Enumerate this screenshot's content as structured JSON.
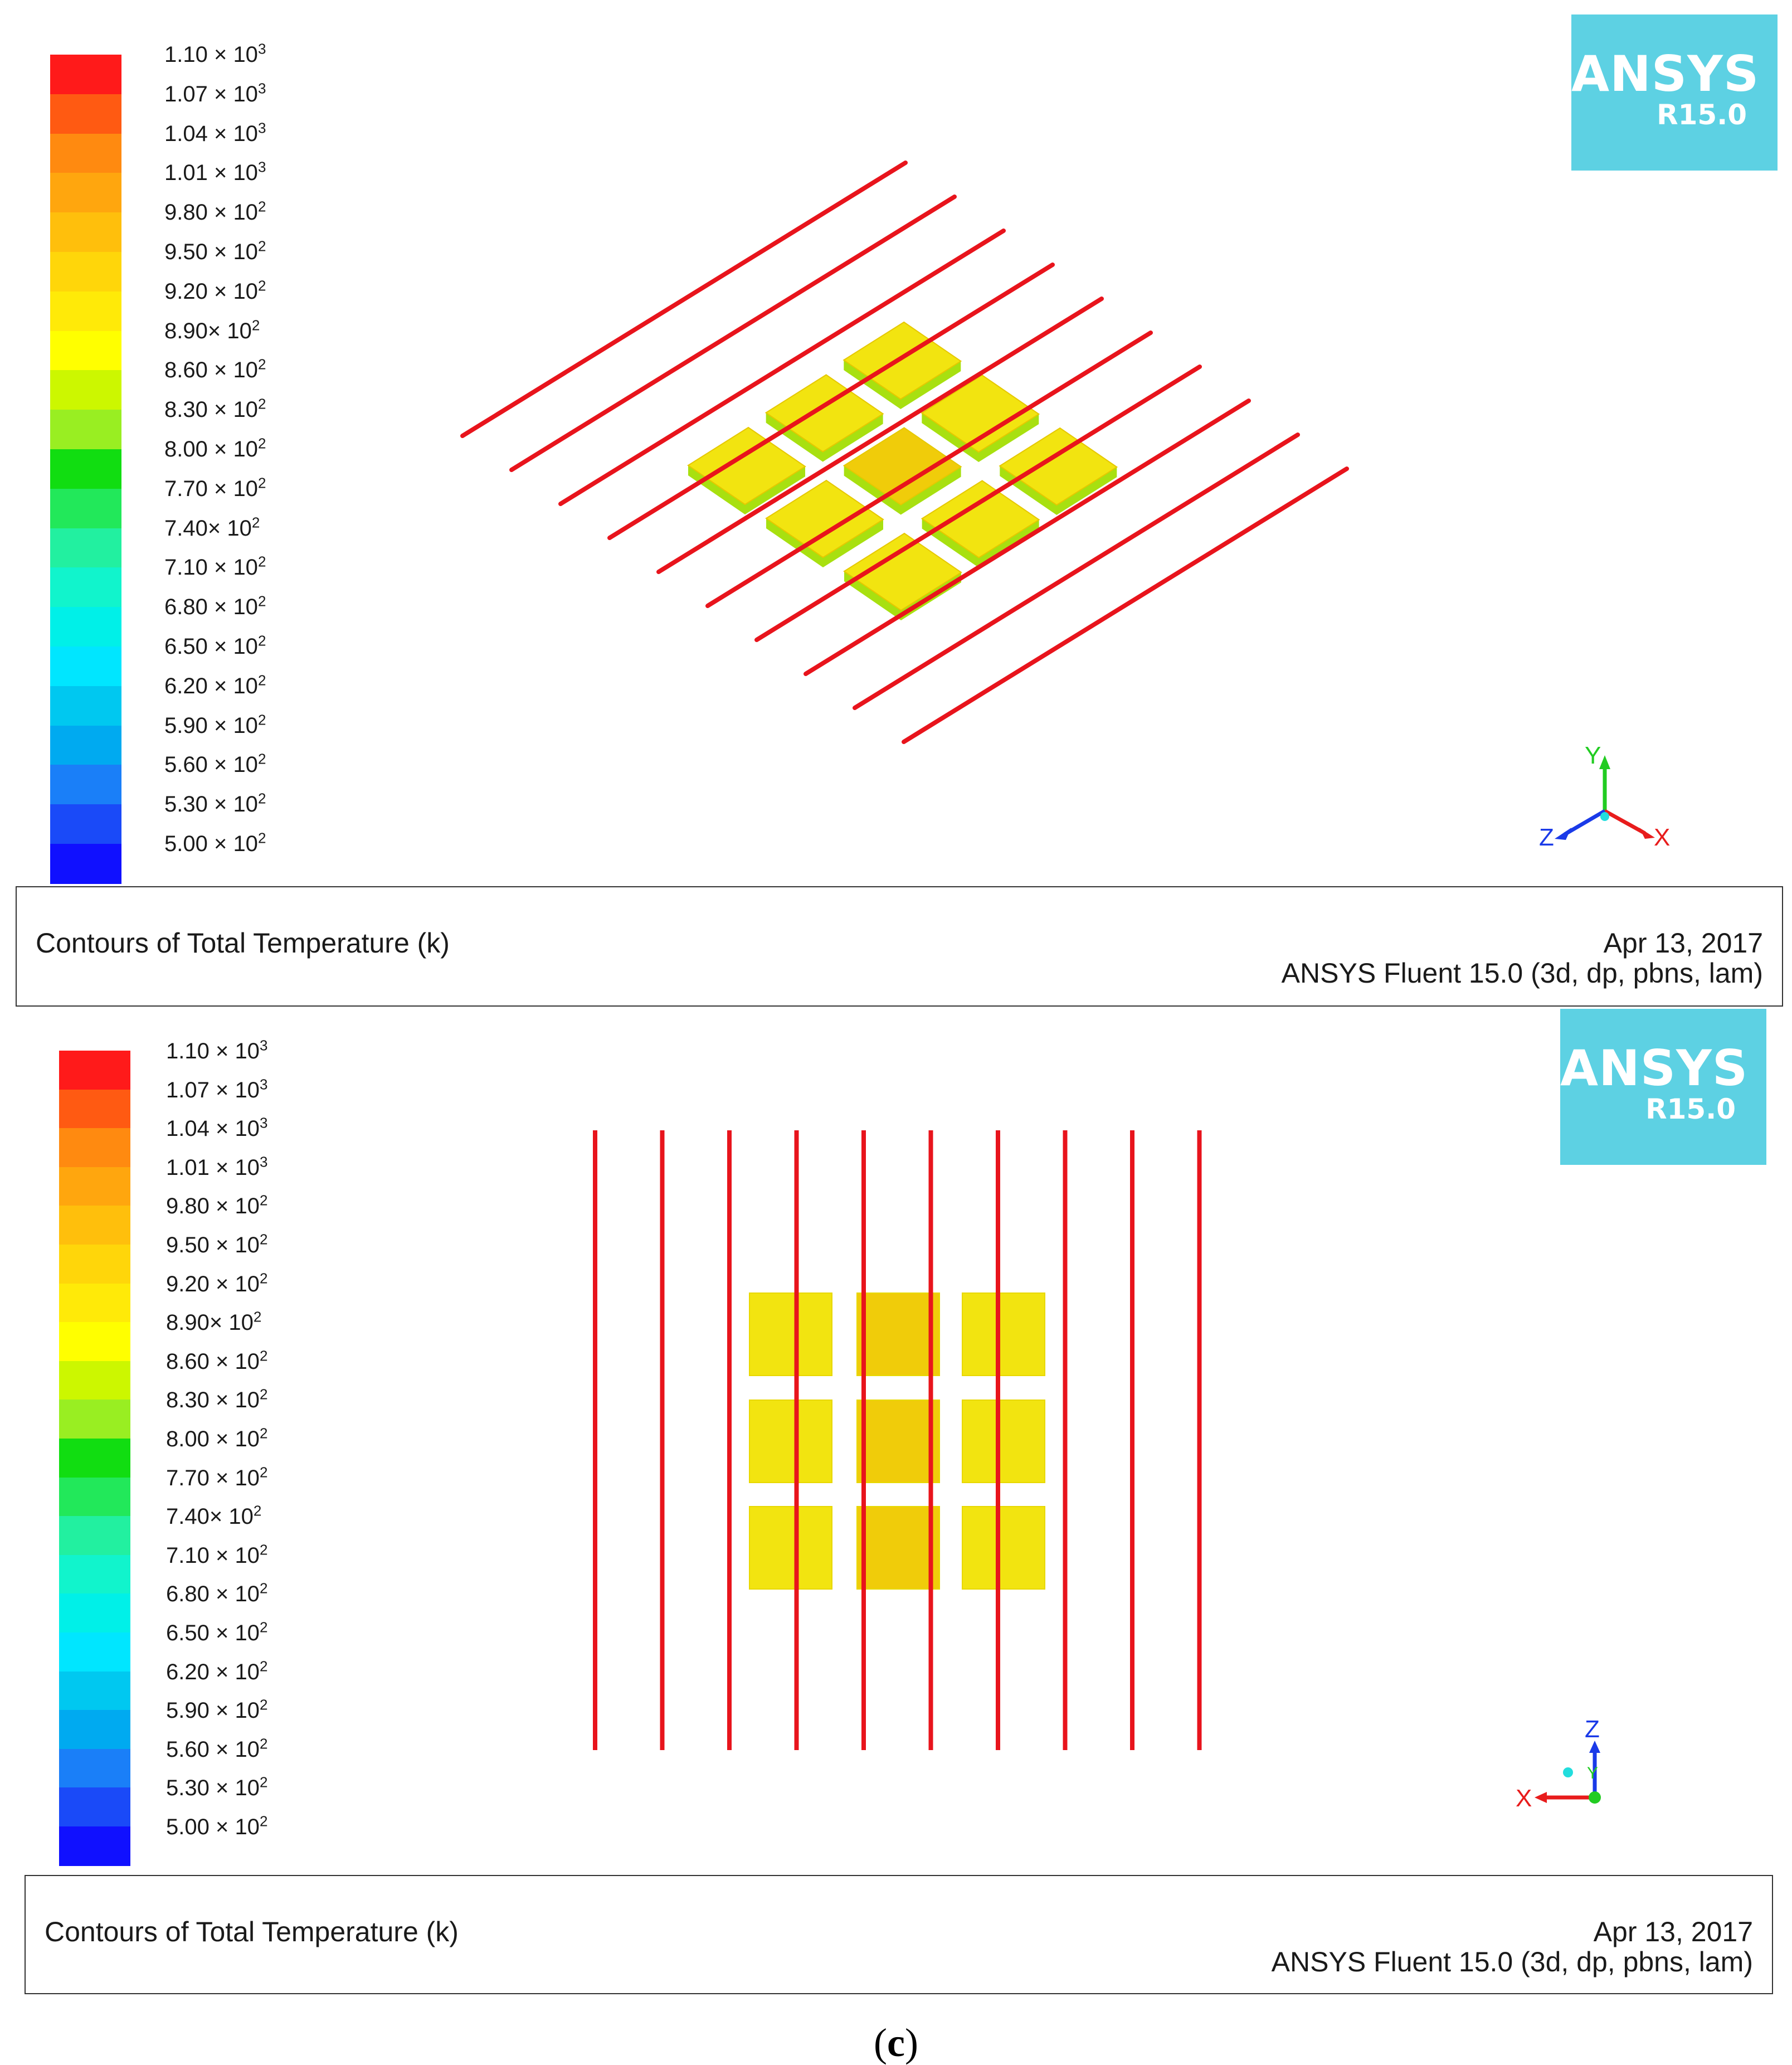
{
  "legend": {
    "colors": [
      "#ff1a1a",
      "#ff5a12",
      "#ff8a10",
      "#ffa60e",
      "#ffbf0c",
      "#ffd60a",
      "#ffea08",
      "#ffff00",
      "#ccf700",
      "#99ee22",
      "#11dd11",
      "#22e85a",
      "#22f0a0",
      "#11f4cc",
      "#00f0e8",
      "#00e6ff",
      "#00c8f0",
      "#00aaf0",
      "#1a7ff8",
      "#1a4af8",
      "#1010ff"
    ],
    "labels": [
      {
        "mantissa": "1.10",
        "sep": " × ",
        "base": "10",
        "exp": "3"
      },
      {
        "mantissa": "1.07",
        "sep": " × ",
        "base": "10",
        "exp": "3"
      },
      {
        "mantissa": "1.04",
        "sep": " × ",
        "base": "10",
        "exp": "3"
      },
      {
        "mantissa": "1.01",
        "sep": " × ",
        "base": "10",
        "exp": "3"
      },
      {
        "mantissa": "9.80",
        "sep": " × ",
        "base": "10",
        "exp": "2"
      },
      {
        "mantissa": "9.50",
        "sep": " × ",
        "base": "10",
        "exp": "2"
      },
      {
        "mantissa": "9.20",
        "sep": " × ",
        "base": "10",
        "exp": "2"
      },
      {
        "mantissa": "8.90",
        "sep": "× ",
        "base": "10",
        "exp": "2"
      },
      {
        "mantissa": "8.60",
        "sep": " × ",
        "base": "10",
        "exp": "2"
      },
      {
        "mantissa": "8.30",
        "sep": " × ",
        "base": "10",
        "exp": "2"
      },
      {
        "mantissa": "8.00",
        "sep": " × ",
        "base": "10",
        "exp": "2"
      },
      {
        "mantissa": "7.70",
        "sep": " × ",
        "base": "10",
        "exp": "2"
      },
      {
        "mantissa": "7.40",
        "sep": "× ",
        "base": "10",
        "exp": "2"
      },
      {
        "mantissa": "7.10",
        "sep": " × ",
        "base": "10",
        "exp": "2"
      },
      {
        "mantissa": "6.80",
        "sep": " × ",
        "base": "10",
        "exp": "2"
      },
      {
        "mantissa": "6.50",
        "sep": " × ",
        "base": "10",
        "exp": "2"
      },
      {
        "mantissa": "6.20",
        "sep": " × ",
        "base": "10",
        "exp": "2"
      },
      {
        "mantissa": "5.90",
        "sep": " × ",
        "base": "10",
        "exp": "2"
      },
      {
        "mantissa": "5.60",
        "sep": " × ",
        "base": "10",
        "exp": "2"
      },
      {
        "mantissa": "5.30",
        "sep": " × ",
        "base": "10",
        "exp": "2"
      },
      {
        "mantissa": "5.00",
        "sep": " × ",
        "base": "10",
        "exp": "2"
      }
    ]
  },
  "logo": {
    "brand": "ANSYS",
    "version": "R15.0",
    "color": "#5dd1e3"
  },
  "panels": [
    {
      "id": "isometric",
      "caption": {
        "left": "Contours of Total Temperature (k)",
        "date": "Apr 13, 2017",
        "solver": "ANSYS Fluent 15.0 (3d, dp, pbns, lam)"
      },
      "axes": {
        "up": "Y",
        "left": "Z",
        "right": "X"
      }
    },
    {
      "id": "top-view",
      "caption": {
        "left": "Contours of Total Temperature (k)",
        "date": "Apr 13, 2017",
        "solver": "ANSYS Fluent 15.0 (3d, dp, pbns, lam)"
      },
      "axes": {
        "up": "Z",
        "left": "X",
        "center": "Y"
      }
    }
  ],
  "figure_label": {
    "open": "(",
    "letter": "c",
    "close": ")"
  },
  "colors": {
    "rod": "#e8141c",
    "block_yellow": "#f2e410",
    "block_orange": "#f0cc0a",
    "block_edge": "#a8e010",
    "axis_y": "#22cc22",
    "axis_x": "#e81c1c",
    "axis_z": "#1a3ae8",
    "axis_origin": "#22dddd"
  }
}
